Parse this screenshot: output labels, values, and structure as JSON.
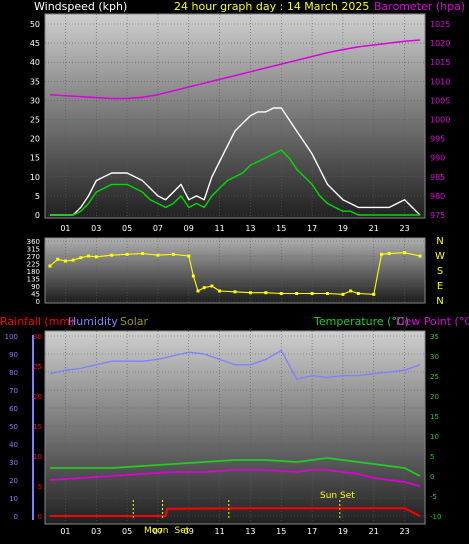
{
  "header": {
    "left_label": "Windspeed (kph)",
    "title": "24 hour graph day : 14 March 2025",
    "right_label": "Barometer (hpa)"
  },
  "colors": {
    "background": "#000000",
    "panel_top": "#c8c8c8",
    "panel_bottom": "#262626",
    "wind_avg": "#00dd00",
    "wind_gust": "#ffffff",
    "barometer": "#dd00dd",
    "direction": "#ffff00",
    "temperature": "#22cc22",
    "dew_point": "#dd00dd",
    "humidity": "#7f7fff",
    "rainfall": "#ff0000",
    "solar": "#999900",
    "label_wind": "#ffffff",
    "label_baro": "#dd00dd",
    "label_title": "#ffff00",
    "label_rain": "#ff0000",
    "label_hum": "#7f7fff",
    "label_solar": "#999900",
    "label_temp": "#22cc22",
    "label_dew": "#dd00dd"
  },
  "x_ticks": [
    "01",
    "03",
    "05",
    "07",
    "09",
    "11",
    "13",
    "15",
    "17",
    "19",
    "21",
    "23"
  ],
  "chart_data": [
    {
      "type": "line",
      "name": "wind-and-barometer",
      "x_range_hours": [
        0,
        24
      ],
      "left_axis": {
        "label": "Windspeed (kph)",
        "ylim": [
          0,
          50
        ],
        "ticks": [
          "0",
          "5",
          "10",
          "15",
          "20",
          "25",
          "30",
          "35",
          "40",
          "45",
          "50"
        ]
      },
      "right_axis": {
        "label": "Barometer (hpa)",
        "ylim": [
          975,
          1025
        ],
        "ticks": [
          "975",
          "980",
          "985",
          "990",
          "995",
          "1000",
          "1005",
          "1010",
          "1015",
          "1020",
          "1025"
        ]
      },
      "series": [
        {
          "name": "Windspeed (kph)",
          "x": [
            0,
            1.5,
            2,
            2.5,
            3,
            3.5,
            4,
            4.5,
            5,
            5.5,
            6,
            6.5,
            7,
            7.5,
            8,
            8.5,
            9,
            9.5,
            10,
            10.5,
            11,
            11.5,
            12,
            12.5,
            13,
            13.5,
            14,
            14.5,
            15,
            15.5,
            16,
            16.5,
            17,
            17.5,
            18,
            18.5,
            19,
            19.5,
            20,
            21,
            22,
            23,
            24
          ],
          "y": [
            0,
            0,
            1,
            3,
            6,
            7,
            8,
            8,
            8,
            7,
            6,
            4,
            3,
            2,
            3,
            5,
            2,
            3,
            2,
            5,
            7,
            9,
            10,
            11,
            13,
            14,
            15,
            16,
            17,
            15,
            12,
            10,
            8,
            5,
            3,
            2,
            1,
            1,
            0,
            0,
            0,
            0,
            0
          ]
        },
        {
          "name": "Windspeed gust (kph)",
          "x": [
            0,
            1.5,
            2,
            2.5,
            3,
            3.5,
            4,
            4.5,
            5,
            5.5,
            6,
            6.5,
            7,
            7.5,
            8,
            8.5,
            9,
            9.5,
            10,
            10.5,
            11,
            11.5,
            12,
            12.5,
            13,
            13.5,
            14,
            14.5,
            15,
            15.5,
            16,
            16.5,
            17,
            17.5,
            18,
            18.5,
            19,
            19.5,
            20,
            21,
            22,
            23,
            24
          ],
          "y": [
            0,
            0,
            2,
            5,
            9,
            10,
            11,
            11,
            11,
            10,
            9,
            7,
            5,
            4,
            6,
            8,
            4,
            5,
            4,
            10,
            14,
            18,
            22,
            24,
            26,
            27,
            27,
            28,
            28,
            25,
            22,
            19,
            16,
            12,
            8,
            6,
            4,
            3,
            2,
            2,
            2,
            4,
            0
          ]
        },
        {
          "name": "Barometer (hpa)",
          "x": [
            0,
            2,
            4,
            5,
            6,
            7,
            8,
            9,
            10,
            11,
            12,
            13,
            14,
            15,
            16,
            17,
            18,
            19,
            20,
            21,
            22,
            23,
            24
          ],
          "y": [
            1006.5,
            1006,
            1005.5,
            1005.5,
            1005.8,
            1006.5,
            1007.5,
            1008.5,
            1009.5,
            1010.5,
            1011.5,
            1012.5,
            1013.5,
            1014.5,
            1015.5,
            1016.5,
            1017.5,
            1018.3,
            1019,
            1019.5,
            1020,
            1020.5,
            1020.8
          ]
        }
      ]
    },
    {
      "type": "scatter",
      "name": "wind-direction",
      "x_range_hours": [
        0,
        24
      ],
      "left_axis": {
        "ylim": [
          0,
          360
        ],
        "ticks": [
          "0",
          "45",
          "90",
          "135",
          "180",
          "225",
          "270",
          "315",
          "360"
        ]
      },
      "right_axis": {
        "ticks": [
          "N",
          "W",
          "S",
          "E",
          "N"
        ]
      },
      "series": [
        {
          "name": "Wind direction",
          "x": [
            0,
            0.5,
            1,
            1.5,
            2,
            2.5,
            3,
            4,
            5,
            6,
            7,
            8,
            9,
            9.3,
            9.6,
            10,
            10.5,
            11,
            12,
            13,
            14,
            15,
            16,
            17,
            18,
            19,
            19.5,
            20,
            21,
            21.5,
            22,
            23,
            24
          ],
          "y": [
            210,
            250,
            240,
            245,
            260,
            270,
            265,
            275,
            280,
            285,
            275,
            280,
            270,
            150,
            60,
            80,
            90,
            60,
            55,
            50,
            50,
            45,
            45,
            45,
            45,
            40,
            60,
            45,
            40,
            280,
            285,
            290,
            270
          ]
        }
      ]
    },
    {
      "type": "line",
      "name": "temperature-humidity-rain",
      "x_range_hours": [
        0,
        24
      ],
      "left_axis": {
        "labels": [
          "Rainfall (mm)",
          "Humidity"
        ],
        "ylim_humidity": [
          0,
          100
        ],
        "ticks_humidity": [
          "0",
          "10",
          "20",
          "30",
          "40",
          "50",
          "60",
          "70",
          "80",
          "90",
          "100"
        ],
        "ticks_rain": [
          "0",
          "5",
          "10",
          "15",
          "20",
          "25",
          "30"
        ]
      },
      "right_axis": {
        "labels": [
          "Temperature (°C)",
          "Dew Point (°C)"
        ],
        "ylim": [
          -10,
          35
        ],
        "ticks": [
          "-10",
          "-5",
          "0",
          "5",
          "10",
          "15",
          "20",
          "25",
          "30",
          "35"
        ]
      },
      "series": [
        {
          "name": "Humidity",
          "x": [
            0,
            1,
            2,
            3,
            4,
            5,
            6,
            7,
            8,
            9,
            10,
            11,
            12,
            13,
            14,
            15,
            16,
            17,
            18,
            19,
            20,
            21,
            22,
            23,
            24
          ],
          "y": [
            79,
            81,
            82,
            84,
            86,
            86,
            86,
            87,
            89,
            91,
            90,
            87,
            84,
            84,
            87,
            92,
            76,
            78,
            77,
            78,
            78,
            79,
            80,
            81,
            84
          ]
        },
        {
          "name": "Temperature (°C)",
          "x": [
            0,
            2,
            4,
            6,
            8,
            10,
            12,
            14,
            16,
            17,
            18,
            19,
            20,
            21,
            22,
            23,
            24
          ],
          "y": [
            2,
            2,
            2,
            2.5,
            3,
            3.5,
            4,
            4,
            3.5,
            4,
            4.5,
            4,
            3.5,
            3,
            2.5,
            2,
            0
          ]
        },
        {
          "name": "Dew Point (°C)",
          "x": [
            0,
            2,
            4,
            6,
            8,
            10,
            12,
            14,
            16,
            17,
            18,
            19,
            20,
            21,
            22,
            23,
            24
          ],
          "y": [
            -1,
            -0.5,
            0,
            0.5,
            1,
            1,
            1.5,
            1.5,
            1,
            1.5,
            1.5,
            1,
            0.5,
            -0.5,
            -1,
            -1.5,
            -2.5
          ]
        },
        {
          "name": "Rainfall (mm)",
          "x": [
            0,
            7.5,
            7.6,
            13,
            14,
            15,
            16,
            17,
            18,
            19,
            20,
            21,
            22,
            23,
            24
          ],
          "y": [
            0,
            0,
            1.2,
            1.3,
            1.3,
            1.3,
            1.3,
            1.3,
            1.3,
            1.3,
            1.3,
            1.3,
            1.3,
            1.3,
            0
          ]
        }
      ],
      "annotations": [
        "Moon Set",
        "Sun Set"
      ]
    }
  ],
  "legend": {
    "rainfall": "Rainfall (mm)",
    "humidity": "Humidity",
    "solar": "Solar",
    "temperature": "Temperature (°C)",
    "dew_point": "Dew Point (°C)"
  },
  "compass": [
    "N",
    "W",
    "S",
    "E",
    "N"
  ],
  "annotations": {
    "moon": "Moon",
    "set": "Set",
    "sun_set": "Sun Set"
  }
}
